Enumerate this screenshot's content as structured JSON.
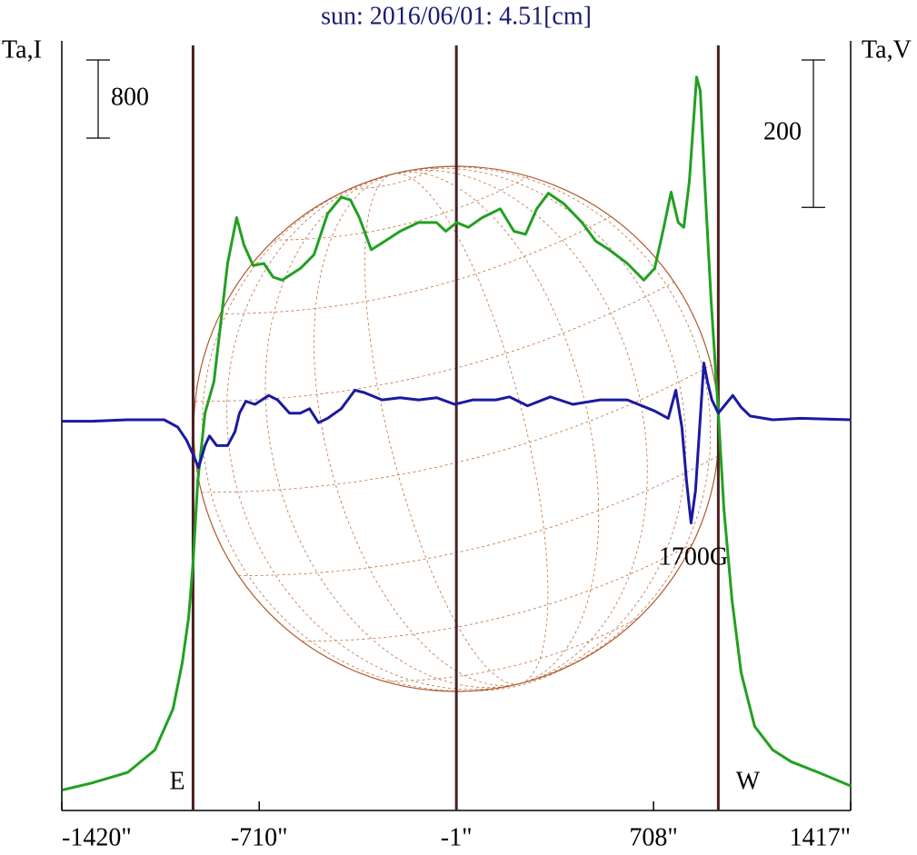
{
  "chart_data": {
    "type": "line",
    "title": "sun: 2016/06/01: 4.51[cm]",
    "y_label": "Ta,I",
    "y2_label": "Ta,V",
    "xlim": [
      -1420,
      1417
    ],
    "xticks": [
      {
        "value": -1420,
        "label": "-1420\""
      },
      {
        "value": -710,
        "label": "-710\""
      },
      {
        "value": -1,
        "label": "-1\""
      },
      {
        "value": 708,
        "label": "708\""
      },
      {
        "value": 1417,
        "label": "1417\""
      }
    ],
    "ylim": [
      0,
      8000
    ],
    "y2lim": [
      -530,
      530
    ],
    "scale_bar_y": 800,
    "scale_bar_y2": 200,
    "markers": [
      -948,
      -1,
      941
    ],
    "annotations": [
      "E",
      "W",
      "1700G"
    ],
    "series": [
      {
        "name": "I",
        "color": "#22a022",
        "x": [
          -1418,
          -1314,
          -1183,
          -1085,
          -1020,
          -987,
          -964,
          -948,
          -931,
          -905,
          -873,
          -850,
          -824,
          -791,
          -765,
          -732,
          -693,
          -660,
          -627,
          -562,
          -513,
          -464,
          -415,
          -382,
          -350,
          -307,
          -268,
          -203,
          -137,
          -72,
          -39,
          0,
          42,
          92,
          157,
          206,
          248,
          288,
          330,
          386,
          451,
          500,
          549,
          614,
          673,
          712,
          745,
          771,
          797,
          817,
          837,
          863,
          876,
          892,
          915,
          941,
          961,
          990,
          1023,
          1072,
          1137,
          1203,
          1301,
          1418
        ],
        "values": [
          210,
          280,
          390,
          620,
          1040,
          1510,
          1970,
          2530,
          3370,
          4070,
          4390,
          4950,
          5600,
          6070,
          5790,
          5580,
          5600,
          5460,
          5430,
          5550,
          5690,
          6110,
          6280,
          6250,
          6070,
          5740,
          5810,
          5930,
          6020,
          6020,
          5930,
          6020,
          5970,
          6070,
          6160,
          5930,
          5900,
          6160,
          6320,
          6210,
          6020,
          5830,
          5740,
          5600,
          5430,
          5550,
          5970,
          6330,
          6020,
          5970,
          6440,
          7510,
          7370,
          6440,
          5230,
          4070,
          3090,
          2160,
          1410,
          860,
          620,
          500,
          390,
          250
        ]
      },
      {
        "name": "V",
        "color": "#1a1aa0",
        "axis": "y2",
        "x": [
          -1418,
          -1314,
          -1183,
          -1052,
          -1003,
          -971,
          -948,
          -928,
          -905,
          -889,
          -863,
          -824,
          -797,
          -781,
          -758,
          -725,
          -676,
          -644,
          -601,
          -562,
          -529,
          -497,
          -464,
          -415,
          -366,
          -333,
          -268,
          -203,
          -137,
          -72,
          -7,
          59,
          141,
          190,
          255,
          337,
          418,
          516,
          614,
          712,
          761,
          788,
          810,
          827,
          843,
          859,
          876,
          889,
          902,
          918,
          941,
          967,
          993,
          1023,
          1056,
          1137,
          1235,
          1418
        ],
        "values": [
          -2,
          -2,
          0,
          0,
          -10,
          -28,
          -47,
          -65,
          -35,
          -22,
          -35,
          -35,
          -16,
          9,
          25,
          21,
          33,
          27,
          9,
          9,
          15,
          -4,
          2,
          15,
          40,
          37,
          27,
          30,
          27,
          30,
          21,
          27,
          27,
          31,
          19,
          31,
          21,
          27,
          27,
          12,
          2,
          40,
          -10,
          -84,
          -140,
          -96,
          2,
          77,
          52,
          27,
          9,
          21,
          33,
          17,
          5,
          0,
          2,
          0
        ]
      }
    ]
  }
}
